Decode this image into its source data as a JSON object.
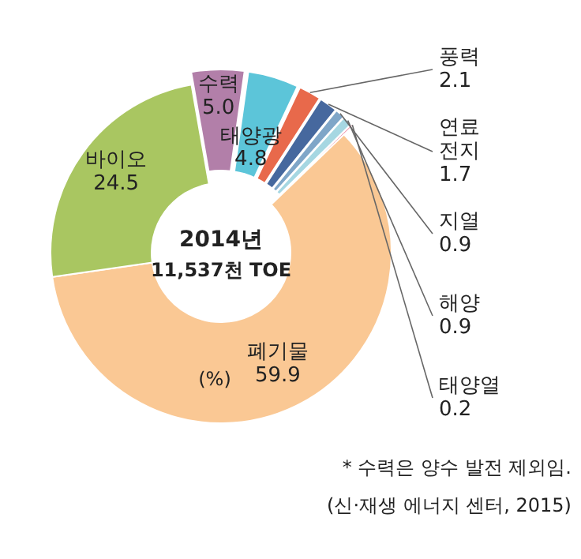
{
  "chart_data": {
    "type": "donut",
    "title": "2014년",
    "subtitle": "11,537천 TOE",
    "categories": [
      "수력",
      "태양광",
      "풍력",
      "연료 전지",
      "지열",
      "해양",
      "태양열",
      "폐기물",
      "바이오"
    ],
    "values": [
      5.0,
      4.8,
      2.1,
      1.7,
      0.9,
      0.9,
      0.2,
      59.9,
      24.5
    ],
    "colors": [
      "#b27fa9",
      "#5cc5d9",
      "#e8694b",
      "#46689e",
      "#7fa6c8",
      "#a6d7e2",
      "#e65b7c",
      "#fac894",
      "#a9c661"
    ],
    "value_labels": [
      "5.0",
      "4.8",
      "2.1",
      "1.7",
      "0.9",
      "0.9",
      "0.2",
      "59.9",
      "24.5"
    ],
    "annotations": [
      "(%)",
      "* 수력은 양수 발전 제외임.",
      "(신·재생 에너지 센터, 2015)"
    ]
  }
}
